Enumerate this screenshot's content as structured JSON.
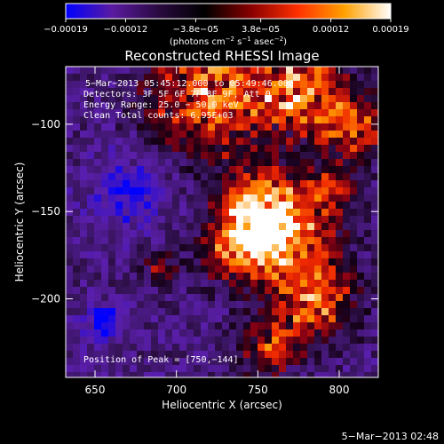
{
  "chart_data": {
    "type": "heatmap",
    "title": "Reconstructed RHESSI Image",
    "xlabel": "Heliocentric X (arcsec)",
    "ylabel": "Heliocentric Y (arcsec)",
    "xlim": [
      632,
      824
    ],
    "ylim": [
      -245,
      -67
    ],
    "x_ticks": [
      650,
      700,
      750,
      800
    ],
    "x_tick_labels": [
      "650",
      "700",
      "750",
      "800"
    ],
    "y_ticks": [
      -100,
      -150,
      -200
    ],
    "y_tick_labels": [
      "−100",
      "−150",
      "−200"
    ],
    "colorbar": {
      "range": [
        -0.00019,
        0.00019
      ],
      "ticks": [
        -0.00019,
        -0.00012,
        -3.8e-05,
        3.8e-05,
        0.00012,
        0.00019
      ],
      "tick_labels": [
        "−0.00019",
        "−0.00012",
        "−3.8e−05",
        "3.8e−05",
        "0.00012",
        "0.00019"
      ],
      "unit_main": "(photons cm",
      "unit_sup1": "−2",
      "unit_mid1": " s",
      "unit_sup2": "−1",
      "unit_mid2": " asec",
      "unit_sup3": "−2",
      "unit_end": ")",
      "colors": [
        "#0000ff",
        "#5a1aa0",
        "#2a0a40",
        "#000000",
        "#8a0000",
        "#ff3000",
        "#ffa000",
        "#ffffff"
      ]
    },
    "annotations": {
      "time_range": "5−Mar−2013 05:45:12.000 to 05:49:46.000",
      "detectors": "Detectors: 3F 5F 6F 7F 8F 9F, Att 0",
      "energy": "Energy Range: 25.0 − 50.0 keV",
      "clean": "Clean     Total counts: 6.95E+03",
      "peak": "Position of Peak = [750,−144]"
    },
    "peak": [
      750,
      -144
    ],
    "timestamp": "5−Mar−2013 02:48"
  }
}
